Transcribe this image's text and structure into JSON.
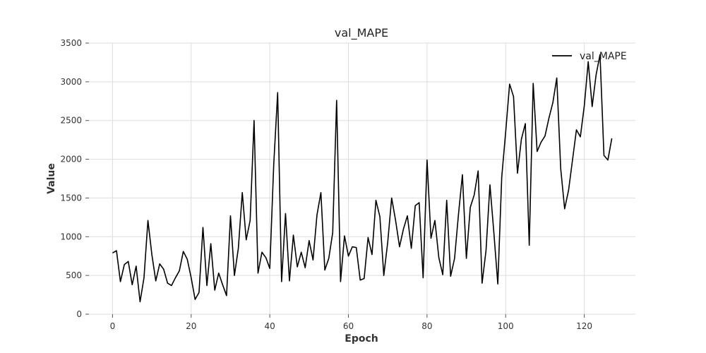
{
  "chart_data": {
    "type": "line",
    "title": "val_MAPE",
    "xlabel": "Epoch",
    "ylabel": "Value",
    "xlim": [
      -6,
      133
    ],
    "ylim": [
      0,
      3500
    ],
    "xticks": [
      0,
      20,
      40,
      60,
      80,
      100,
      120
    ],
    "yticks": [
      0,
      500,
      1000,
      1500,
      2000,
      2500,
      3000,
      3500
    ],
    "grid": true,
    "legend_position": "top-right",
    "series": [
      {
        "name": "val_MAPE",
        "color": "#000000",
        "x": [
          0,
          1,
          2,
          3,
          4,
          5,
          6,
          7,
          8,
          9,
          10,
          11,
          12,
          13,
          14,
          15,
          16,
          17,
          18,
          19,
          20,
          21,
          22,
          23,
          24,
          25,
          26,
          27,
          28,
          29,
          30,
          31,
          32,
          33,
          34,
          35,
          36,
          37,
          38,
          39,
          40,
          41,
          42,
          43,
          44,
          45,
          46,
          47,
          48,
          49,
          50,
          51,
          52,
          53,
          54,
          55,
          56,
          57,
          58,
          59,
          60,
          61,
          62,
          63,
          64,
          65,
          66,
          67,
          68,
          69,
          70,
          71,
          72,
          73,
          74,
          75,
          76,
          77,
          78,
          79,
          80,
          81,
          82,
          83,
          84,
          85,
          86,
          87,
          88,
          89,
          90,
          91,
          92,
          93,
          94,
          95,
          96,
          97,
          98,
          99,
          100,
          101,
          102,
          103,
          104,
          105,
          106,
          107,
          108,
          109,
          110,
          111,
          112,
          113,
          114,
          115,
          116,
          117,
          118,
          119,
          120,
          121,
          122,
          123,
          124,
          125,
          126,
          127
        ],
        "values": [
          790,
          820,
          420,
          640,
          680,
          380,
          620,
          160,
          470,
          1210,
          770,
          430,
          650,
          580,
          400,
          370,
          470,
          560,
          810,
          710,
          470,
          190,
          280,
          1120,
          370,
          910,
          310,
          530,
          380,
          240,
          1270,
          500,
          850,
          1570,
          960,
          1210,
          2500,
          530,
          800,
          730,
          590,
          1930,
          2860,
          420,
          1300,
          430,
          1020,
          610,
          800,
          600,
          950,
          700,
          1280,
          1570,
          570,
          720,
          1050,
          2760,
          420,
          1010,
          750,
          870,
          860,
          440,
          460,
          990,
          770,
          1470,
          1260,
          500,
          930,
          1500,
          1210,
          870,
          1100,
          1270,
          850,
          1400,
          1440,
          470,
          1990,
          980,
          1210,
          730,
          510,
          1470,
          490,
          720,
          1290,
          1800,
          720,
          1380,
          1540,
          1850,
          400,
          820,
          1670,
          1050,
          390,
          1770,
          2350,
          2970,
          2810,
          1820,
          2260,
          2460,
          890,
          2980,
          2100,
          2220,
          2300,
          2530,
          2730,
          3050,
          1880,
          1360,
          1600,
          1990,
          2380,
          2290,
          2690,
          3260,
          2680,
          3090,
          3350,
          2050,
          1990,
          2270
        ]
      }
    ]
  }
}
